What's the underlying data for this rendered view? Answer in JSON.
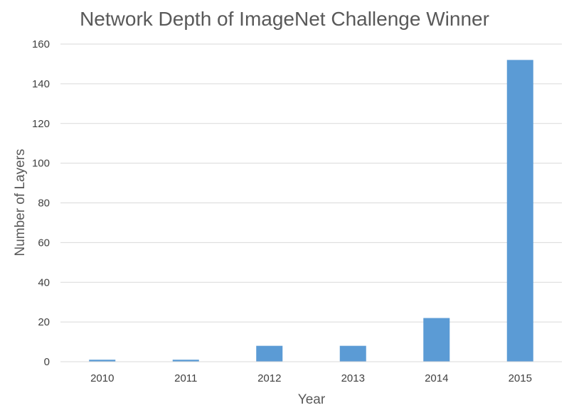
{
  "chart_data": {
    "type": "bar",
    "title": "Network Depth of ImageNet Challenge Winner",
    "xlabel": "Year",
    "ylabel": "Number of Layers",
    "categories": [
      "2010",
      "2011",
      "2012",
      "2013",
      "2014",
      "2015"
    ],
    "values": [
      1,
      1,
      8,
      8,
      22,
      152
    ],
    "ylim": [
      0,
      160
    ],
    "yticks": [
      0,
      20,
      40,
      60,
      80,
      100,
      120,
      140,
      160
    ],
    "grid": true,
    "legend": "none",
    "bar_color": "#5b9bd5"
  }
}
